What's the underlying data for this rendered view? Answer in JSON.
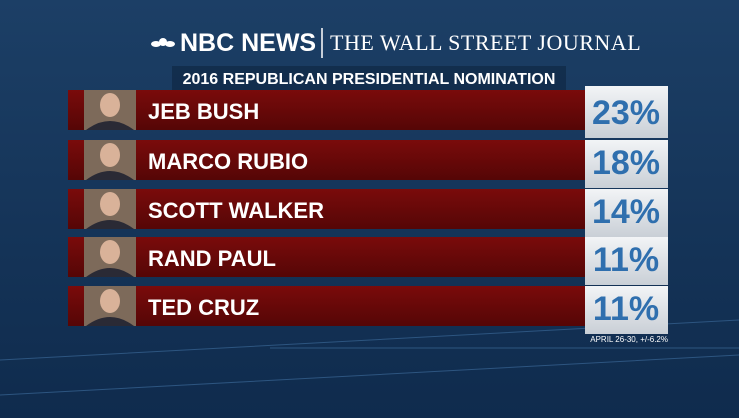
{
  "header": {
    "left": "NBC NEWS",
    "right": "THE WALL STREET JOURNAL"
  },
  "title": "2016 REPUBLICAN PRESIDENTIAL NOMINATION",
  "rows": [
    {
      "name": "JEB BUSH",
      "value": "23%"
    },
    {
      "name": "MARCO RUBIO",
      "value": "18%"
    },
    {
      "name": "SCOTT WALKER",
      "value": "14%"
    },
    {
      "name": "RAND PAUL",
      "value": "11%"
    },
    {
      "name": "TED CRUZ",
      "value": "11%"
    }
  ],
  "footnote": "APRIL 26-30, +/-6.2%"
}
